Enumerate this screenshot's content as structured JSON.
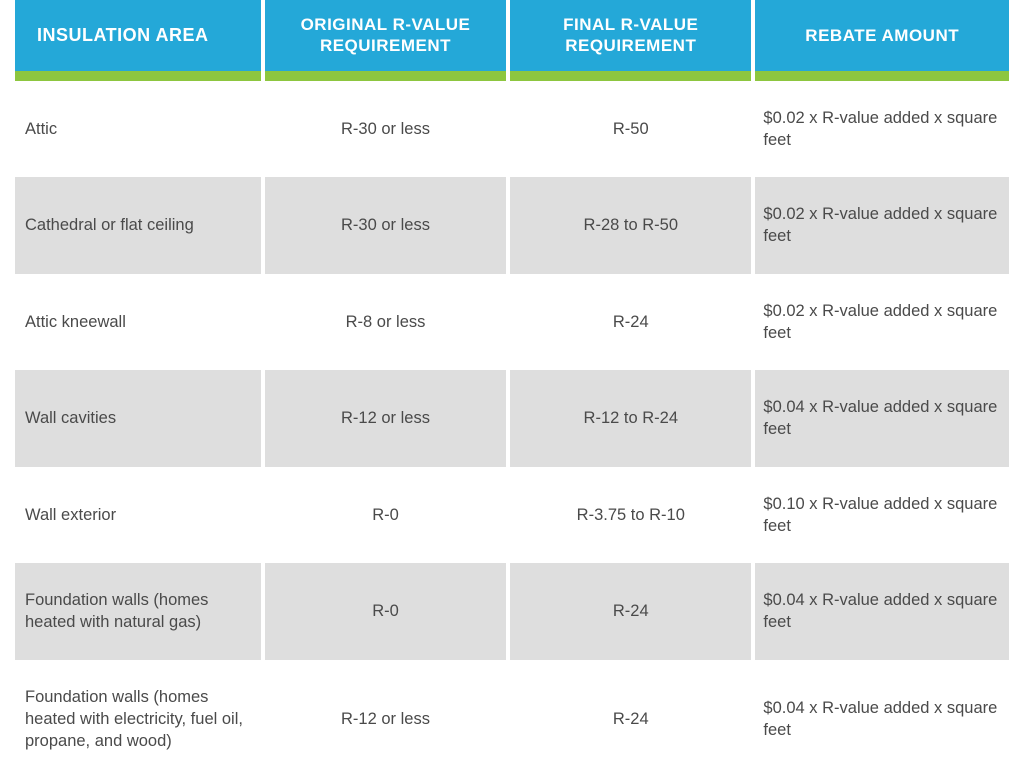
{
  "table": {
    "header_bg": "#24a8d8",
    "header_text_color": "#ffffff",
    "strip_color": "#8dc63f",
    "row_bg_odd": "#ffffff",
    "row_bg_even": "#dedede",
    "text_color": "#4a4a4a",
    "columns": [
      "INSULATION AREA",
      "ORIGINAL R-VALUE REQUIREMENT",
      "FINAL R-VALUE REQUIREMENT",
      "REBATE AMOUNT"
    ],
    "rows": [
      {
        "area": "Attic",
        "original": "R-30 or less",
        "final": "R-50",
        "rebate": "$0.02 x R-value added x square feet"
      },
      {
        "area": "Cathedral or flat ceiling",
        "original": "R-30 or less",
        "final": "R-28 to R-50",
        "rebate": "$0.02 x R-value added x square feet"
      },
      {
        "area": "Attic kneewall",
        "original": "R-8 or less",
        "final": "R-24",
        "rebate": "$0.02 x R-value added x square feet"
      },
      {
        "area": "Wall cavities",
        "original": "R-12 or less",
        "final": "R-12 to R-24",
        "rebate": "$0.04 x R-value added x square feet"
      },
      {
        "area": "Wall exterior",
        "original": "R-0",
        "final": "R-3.75 to R-10",
        "rebate": "$0.10 x R-value added x square feet"
      },
      {
        "area": "Foundation walls (homes heated with natural gas)",
        "original": "R-0",
        "final": "R-24",
        "rebate": "$0.04 x R-value added x square feet"
      },
      {
        "area": "Foundation walls (homes heated with electricity, fuel oil, propane, and wood)",
        "original": "R-12 or less",
        "final": "R-24",
        "rebate": "$0.04 x R-value added x square feet"
      }
    ]
  }
}
